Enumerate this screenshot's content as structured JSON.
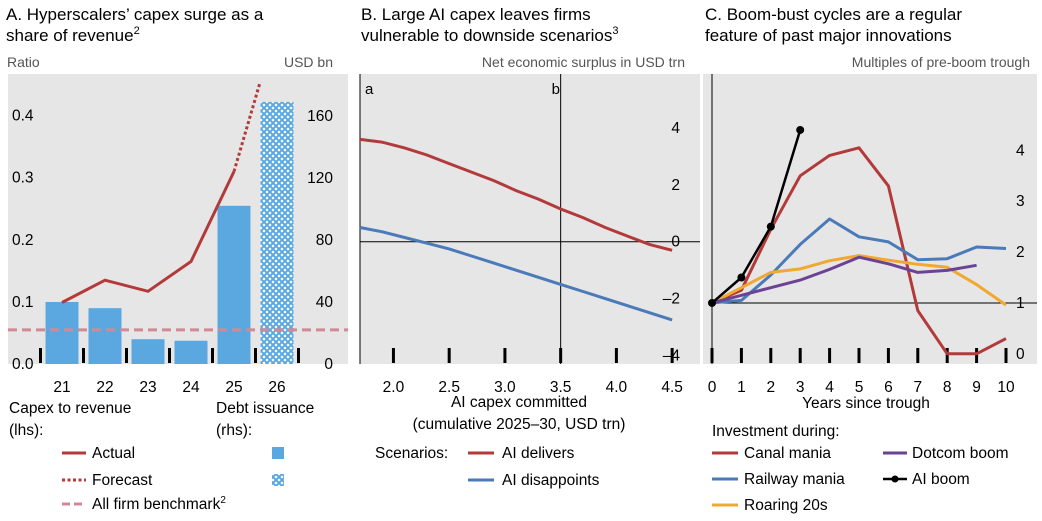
{
  "colors": {
    "panel_bg": "#e6e6e6",
    "red": "#b33a3a",
    "blue": "#4a7ab8",
    "bar_blue": "#5ba8e0",
    "pink_dash": "#d18a95",
    "purple": "#6b4294",
    "orange": "#f0a830",
    "black": "#000000"
  },
  "chart_data": [
    {
      "id": "A",
      "type": "bar",
      "title_lines": [
        "A. Hyperscalers’ capex surge as a",
        "share of revenue"
      ],
      "title_sup": "2",
      "ylabel_left": "Ratio",
      "ylabel_right": "USD bn",
      "categories": [
        "21",
        "22",
        "23",
        "24",
        "25",
        "26"
      ],
      "left_ylim": [
        0,
        0.467
      ],
      "left_ticks": [
        "0.0",
        "0.1",
        "0.2",
        "0.3",
        "0.4"
      ],
      "left_tick_values": [
        0,
        0.1,
        0.2,
        0.3,
        0.4
      ],
      "right_ylim": [
        0,
        187
      ],
      "right_ticks": [
        "0",
        "40",
        "80",
        "120",
        "160"
      ],
      "right_tick_values": [
        0,
        40,
        80,
        120,
        160
      ],
      "series": [
        {
          "name": "Actual",
          "kind": "line",
          "axis": "left",
          "x": [
            0,
            1,
            2,
            3,
            4
          ],
          "values": [
            0.099,
            0.135,
            0.117,
            0.165,
            0.31
          ]
        },
        {
          "name": "Forecast",
          "kind": "dotted-line",
          "axis": "left",
          "x": [
            4,
            4.6
          ],
          "values": [
            0.31,
            0.452
          ]
        },
        {
          "name": "All firm benchmark",
          "kind": "hline",
          "axis": "left",
          "value": 0.055
        },
        {
          "name": "Debt issuance (actual)",
          "kind": "bar",
          "axis": "right",
          "values": [
            40,
            36,
            16,
            15,
            102,
            null
          ]
        },
        {
          "name": "Debt issuance (forecast)",
          "kind": "hatched-bar",
          "axis": "right",
          "values": [
            null,
            null,
            null,
            null,
            null,
            169
          ]
        }
      ],
      "legend": {
        "capex_heading": [
          "Capex to revenue",
          "(lhs):"
        ],
        "debt_heading": [
          "Debt issuance",
          "(rhs):"
        ],
        "actual": "Actual",
        "forecast": "Forecast",
        "benchmark": "All firm benchmark",
        "benchmark_sup": "2"
      }
    },
    {
      "id": "B",
      "type": "line",
      "title_lines": [
        "B. Large AI capex leaves firms",
        "vulnerable to downside scenarios"
      ],
      "title_sup": "3",
      "ylabel": "Net economic surplus in USD trn",
      "xlabel_lines": [
        "AI capex committed",
        "(cumulative 2025–30, USD trn)"
      ],
      "xlim": [
        1.7,
        4.75
      ],
      "ylim": [
        -4.3,
        5.9
      ],
      "x_ticks": [
        "2.0",
        "2.5",
        "3.0",
        "3.5",
        "4.0",
        "4.5"
      ],
      "x_tick_values": [
        2.0,
        2.5,
        3.0,
        3.5,
        4.0,
        4.5
      ],
      "y_ticks": [
        "4",
        "2",
        "0",
        "–2",
        "–4"
      ],
      "y_tick_values": [
        4,
        2,
        0,
        -2,
        -4
      ],
      "vlines": [
        {
          "x": 1.7,
          "label": "a"
        },
        {
          "x": 3.5,
          "label": "b"
        }
      ],
      "series": [
        {
          "name": "AI delivers",
          "color": "red",
          "x": [
            1.7,
            1.9,
            2.1,
            2.3,
            2.5,
            2.7,
            2.9,
            3.1,
            3.3,
            3.5,
            3.7,
            3.9,
            4.1,
            4.3,
            4.5
          ],
          "values": [
            3.6,
            3.5,
            3.3,
            3.05,
            2.75,
            2.45,
            2.15,
            1.8,
            1.5,
            1.15,
            0.85,
            0.5,
            0.2,
            -0.1,
            -0.3
          ]
        },
        {
          "name": "AI disappoints",
          "color": "blue",
          "x": [
            1.7,
            1.9,
            2.1,
            2.3,
            2.5,
            2.7,
            2.9,
            3.1,
            3.3,
            3.5,
            3.7,
            3.9,
            4.1,
            4.3,
            4.5
          ],
          "values": [
            0.5,
            0.35,
            0.15,
            -0.05,
            -0.25,
            -0.5,
            -0.75,
            -1.0,
            -1.25,
            -1.5,
            -1.75,
            -2.0,
            -2.25,
            -2.5,
            -2.75
          ]
        }
      ],
      "legend": {
        "heading": "Scenarios:",
        "delivers": "AI delivers",
        "disappoints": "AI disappoints"
      }
    },
    {
      "id": "C",
      "type": "line",
      "title_lines": [
        "C. Boom-bust cycles are a regular",
        "feature of past major innovations"
      ],
      "ylabel": "Multiples of pre-boom trough",
      "xlabel": "Years since trough",
      "xlim": [
        0,
        10.5
      ],
      "ylim": [
        -0.2,
        5.5
      ],
      "x_ticks": [
        "0",
        "1",
        "2",
        "3",
        "4",
        "5",
        "6",
        "7",
        "8",
        "9",
        "10"
      ],
      "x_tick_values": [
        0,
        1,
        2,
        3,
        4,
        5,
        6,
        7,
        8,
        9,
        10
      ],
      "y_ticks": [
        "0",
        "1",
        "2",
        "3",
        "4"
      ],
      "y_tick_values": [
        0,
        1,
        2,
        3,
        4
      ],
      "baseline": 1,
      "series": [
        {
          "name": "Canal mania",
          "color": "red",
          "x": [
            0,
            1,
            2,
            3,
            4,
            5,
            6,
            7,
            8,
            9,
            10
          ],
          "values": [
            1.0,
            1.25,
            2.45,
            3.5,
            3.9,
            4.05,
            3.3,
            0.85,
            0.0,
            0.0,
            0.3
          ]
        },
        {
          "name": "Railway mania",
          "color": "blue",
          "x": [
            0,
            1,
            2,
            3,
            4,
            5,
            6,
            7,
            8,
            9,
            10
          ],
          "values": [
            1.0,
            1.05,
            1.55,
            2.15,
            2.65,
            2.3,
            2.2,
            1.85,
            1.87,
            2.1,
            2.07
          ]
        },
        {
          "name": "Roaring 20s",
          "color": "orange",
          "x": [
            0,
            1,
            2,
            3,
            4,
            5,
            6,
            7,
            8,
            9,
            10
          ],
          "values": [
            1.0,
            1.3,
            1.6,
            1.67,
            1.83,
            1.93,
            1.84,
            1.76,
            1.7,
            1.36,
            0.96
          ]
        },
        {
          "name": "Dotcom boom",
          "color": "purple",
          "x": [
            0,
            1,
            2,
            3,
            4,
            5,
            6,
            7,
            8,
            9
          ],
          "values": [
            1.0,
            1.15,
            1.3,
            1.45,
            1.66,
            1.9,
            1.77,
            1.6,
            1.64,
            1.74
          ]
        },
        {
          "name": "AI boom",
          "color": "black",
          "markers": true,
          "x": [
            0,
            1,
            2,
            3
          ],
          "values": [
            1.0,
            1.5,
            2.5,
            4.4
          ]
        }
      ],
      "legend": {
        "heading": "Investment during:"
      }
    }
  ]
}
